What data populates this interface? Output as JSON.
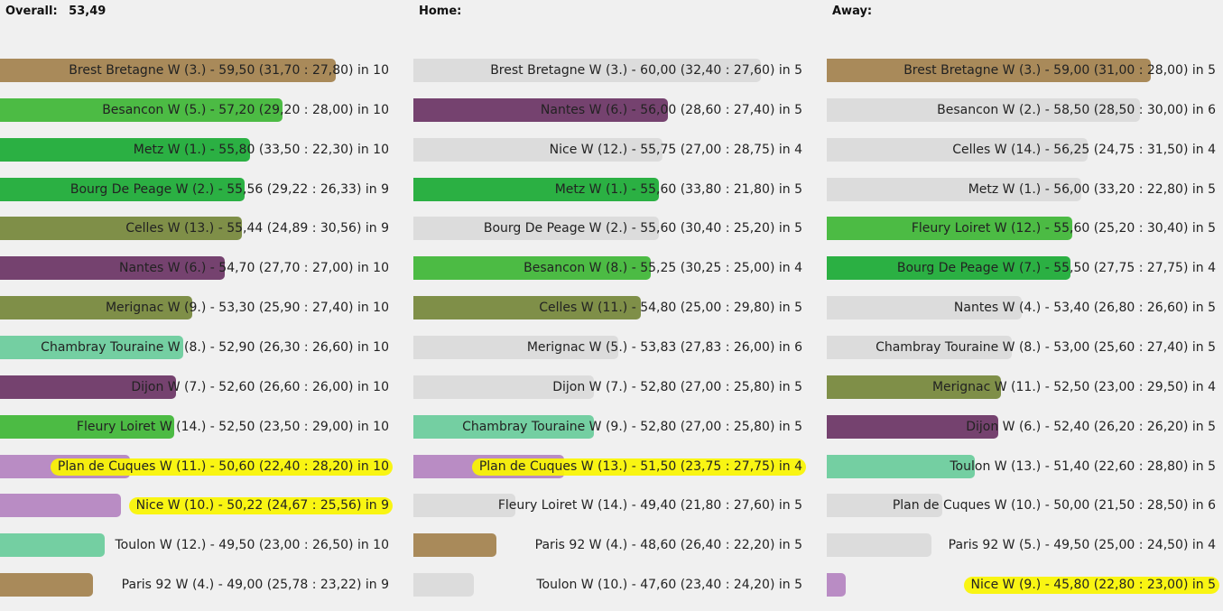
{
  "chart_data": [
    {
      "type": "bar",
      "title": "Overall:",
      "overall_value": "53,49",
      "axis_range": [
        45,
        60
      ],
      "rows": [
        {
          "label": "Brest Bretagne W (3.) - 59,50 (31,70 : 27,80) in 10",
          "value": 59.5,
          "color": "#a98a5a"
        },
        {
          "label": "Besancon W (5.) - 57,20 (29,20 : 28,00) in 10",
          "value": 57.2,
          "color": "#4cbb44"
        },
        {
          "label": "Metz W (1.) - 55,80 (33,50 : 22,30) in 10",
          "value": 55.8,
          "color": "#2bb043"
        },
        {
          "label": "Bourg De Peage W (2.) - 55,56 (29,22 : 26,33) in 9",
          "value": 55.56,
          "color": "#2bb043"
        },
        {
          "label": "Celles W (13.) - 55,44 (24,89 : 30,56) in 9",
          "value": 55.44,
          "color": "#7f8f48"
        },
        {
          "label": "Nantes W (6.) - 54,70 (27,70 : 27,00) in 10",
          "value": 54.7,
          "color": "#75426f"
        },
        {
          "label": "Merignac W (9.) - 53,30 (25,90 : 27,40) in 10",
          "value": 53.3,
          "color": "#7f8f48"
        },
        {
          "label": "Chambray Touraine W (8.) - 52,90 (26,30 : 26,60) in 10",
          "value": 52.9,
          "color": "#74cfa2"
        },
        {
          "label": "Dijon W (7.) - 52,60 (26,60 : 26,00) in 10",
          "value": 52.6,
          "color": "#75426f"
        },
        {
          "label": "Fleury Loiret W (14.) - 52,50 (23,50 : 29,00) in 10",
          "value": 52.5,
          "color": "#4cbb44"
        },
        {
          "label": "Plan de Cuques W (11.) - 50,60 (22,40 : 28,20) in 10",
          "value": 50.6,
          "color": "#b98cc4",
          "highlight": true
        },
        {
          "label": "Nice W (10.) - 50,22 (24,67 : 25,56) in 9",
          "value": 50.22,
          "color": "#b98cc4",
          "highlight": true
        },
        {
          "label": "Toulon W (12.) - 49,50 (23,00 : 26,50) in 10",
          "value": 49.5,
          "color": "#74cfa2"
        },
        {
          "label": "Paris 92 W (4.) - 49,00 (25,78 : 23,22) in 9",
          "value": 49.0,
          "color": "#a98a5a"
        }
      ]
    },
    {
      "type": "bar",
      "title": "Home:",
      "axis_range": [
        45,
        60
      ],
      "rows": [
        {
          "label": "Brest Bretagne W (3.) - 60,00 (32,40 : 27,60) in 5",
          "value": 60.0,
          "color": "#dcdcdc"
        },
        {
          "label": "Nantes W (6.) - 56,00 (28,60 : 27,40) in 5",
          "value": 56.0,
          "color": "#75426f"
        },
        {
          "label": "Nice W (12.) - 55,75 (27,00 : 28,75) in 4",
          "value": 55.75,
          "color": "#dcdcdc"
        },
        {
          "label": "Metz W (1.) - 55,60 (33,80 : 21,80) in 5",
          "value": 55.6,
          "color": "#2bb043"
        },
        {
          "label": "Bourg De Peage W (2.) - 55,60 (30,40 : 25,20) in 5",
          "value": 55.6,
          "color": "#dcdcdc"
        },
        {
          "label": "Besancon W (8.) - 55,25 (30,25 : 25,00) in 4",
          "value": 55.25,
          "color": "#4cbb44"
        },
        {
          "label": "Celles W (11.) - 54,80 (25,00 : 29,80) in 5",
          "value": 54.8,
          "color": "#7f8f48"
        },
        {
          "label": "Merignac W (5.) - 53,83 (27,83 : 26,00) in 6",
          "value": 53.83,
          "color": "#dcdcdc"
        },
        {
          "label": "Dijon W (7.) - 52,80 (27,00 : 25,80) in 5",
          "value": 52.8,
          "color": "#dcdcdc"
        },
        {
          "label": "Chambray Touraine W (9.) - 52,80 (27,00 : 25,80) in 5",
          "value": 52.8,
          "color": "#74cfa2"
        },
        {
          "label": "Plan de Cuques W (13.) - 51,50 (23,75 : 27,75) in 4",
          "value": 51.5,
          "color": "#b98cc4",
          "highlight": true
        },
        {
          "label": "Fleury Loiret W (14.) - 49,40 (21,80 : 27,60) in 5",
          "value": 49.4,
          "color": "#dcdcdc"
        },
        {
          "label": "Paris 92 W (4.) - 48,60 (26,40 : 22,20) in 5",
          "value": 48.6,
          "color": "#a98a5a"
        },
        {
          "label": "Toulon W (10.) - 47,60 (23,40 : 24,20) in 5",
          "value": 47.6,
          "color": "#dcdcdc"
        }
      ]
    },
    {
      "type": "bar",
      "title": "Away:",
      "axis_range": [
        45,
        60
      ],
      "rows": [
        {
          "label": "Brest Bretagne W (3.) - 59,00 (31,00 : 28,00) in 5",
          "value": 59.0,
          "color": "#a98a5a"
        },
        {
          "label": "Besancon W (2.) - 58,50 (28,50 : 30,00) in 6",
          "value": 58.5,
          "color": "#dcdcdc"
        },
        {
          "label": "Celles W (14.) - 56,25 (24,75 : 31,50) in 4",
          "value": 56.25,
          "color": "#dcdcdc"
        },
        {
          "label": "Metz W (1.) - 56,00 (33,20 : 22,80) in 5",
          "value": 56.0,
          "color": "#dcdcdc"
        },
        {
          "label": "Fleury Loiret W (12.) - 55,60 (25,20 : 30,40) in 5",
          "value": 55.6,
          "color": "#4cbb44"
        },
        {
          "label": "Bourg De Peage W (7.) - 55,50 (27,75 : 27,75) in 4",
          "value": 55.5,
          "color": "#2bb043"
        },
        {
          "label": "Nantes W (4.) - 53,40 (26,80 : 26,60) in 5",
          "value": 53.4,
          "color": "#dcdcdc"
        },
        {
          "label": "Chambray Touraine W (8.) - 53,00 (25,60 : 27,40) in 5",
          "value": 53.0,
          "color": "#dcdcdc"
        },
        {
          "label": "Merignac W (11.) - 52,50 (23,00 : 29,50) in 4",
          "value": 52.5,
          "color": "#7f8f48"
        },
        {
          "label": "Dijon W (6.) - 52,40 (26,20 : 26,20) in 5",
          "value": 52.4,
          "color": "#75426f"
        },
        {
          "label": "Toulon W (13.) - 51,40 (22,60 : 28,80) in 5",
          "value": 51.4,
          "color": "#74cfa2"
        },
        {
          "label": "Plan de Cuques W (10.) - 50,00 (21,50 : 28,50) in 6",
          "value": 50.0,
          "color": "#dcdcdc"
        },
        {
          "label": "Paris 92 W (5.) - 49,50 (25,00 : 24,50) in 4",
          "value": 49.5,
          "color": "#dcdcdc"
        },
        {
          "label": "Nice W (9.) - 45,80 (22,80 : 23,00) in 5",
          "value": 45.8,
          "color": "#b98cc4",
          "highlight": true
        }
      ]
    }
  ]
}
